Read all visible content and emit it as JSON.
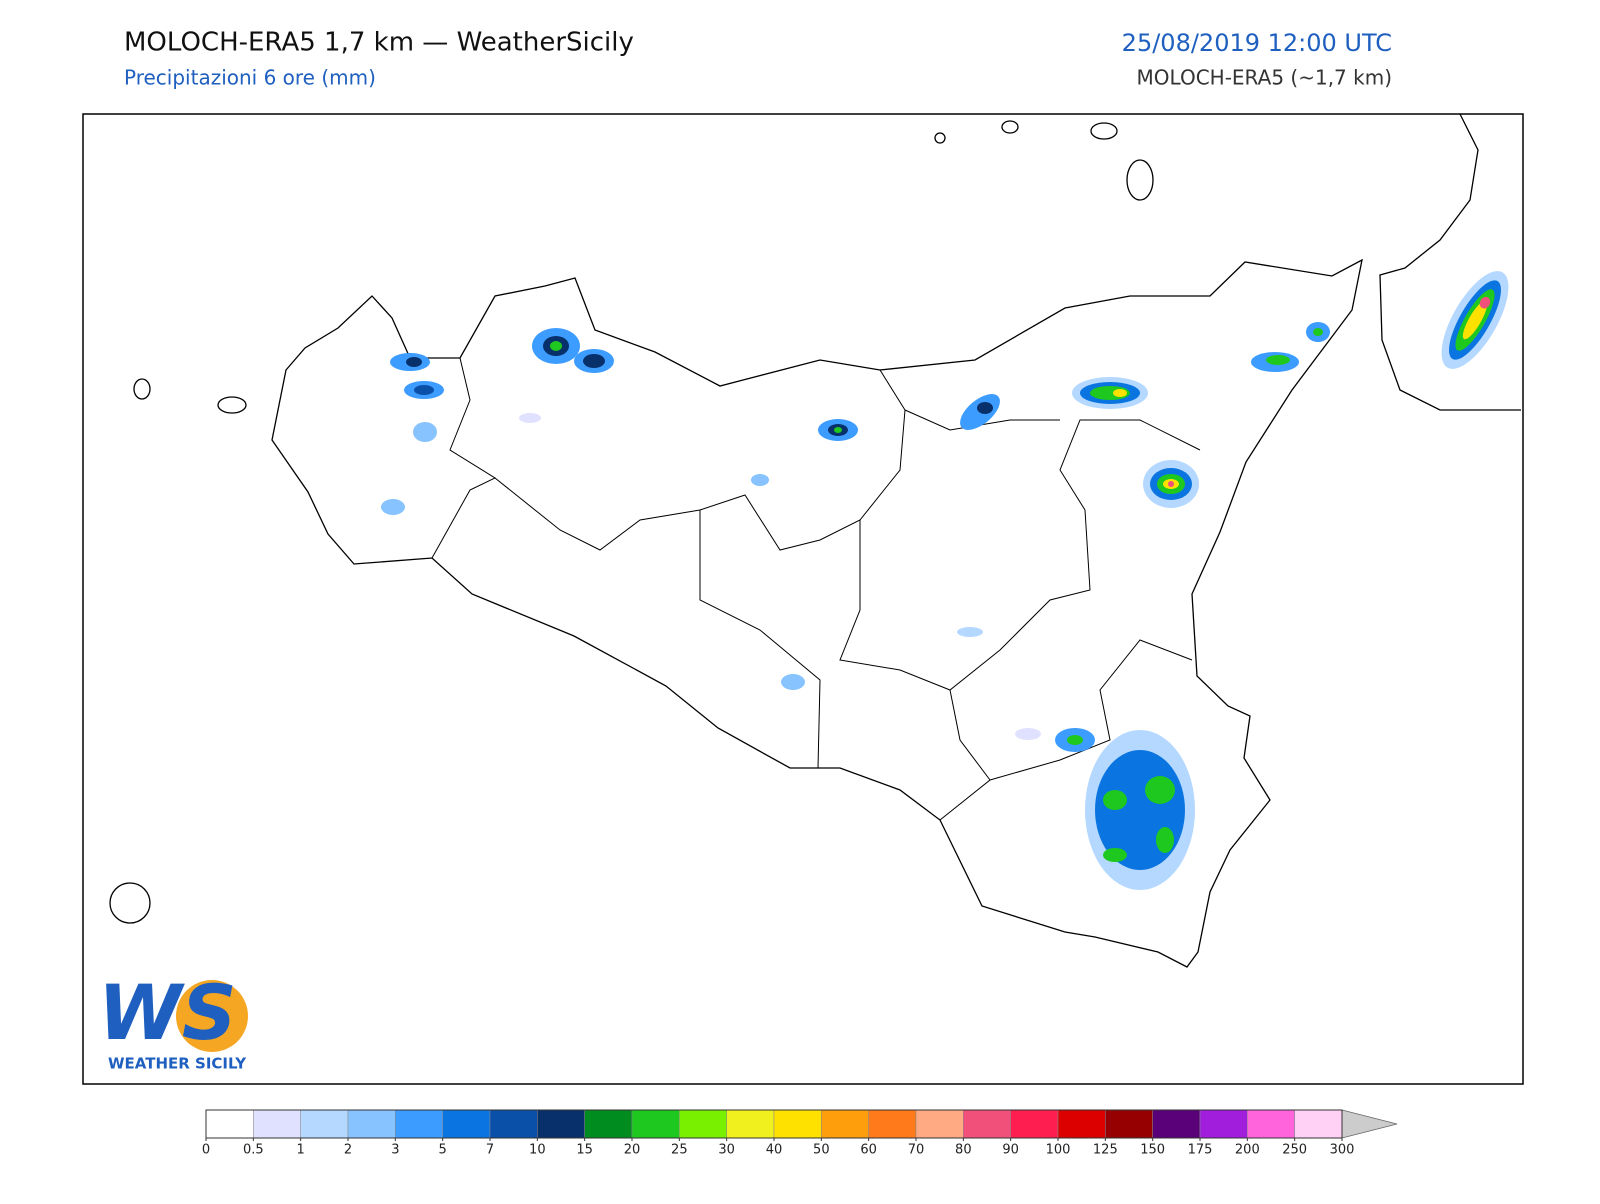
{
  "header": {
    "title": "MOLOCH-ERA5 1,7 km — WeatherSicily",
    "subtitle": "Precipitazioni 6 ore (mm)",
    "datetime": "25/08/2019 12:00 UTC",
    "model": "MOLOCH-ERA5 (~1,7 km)"
  },
  "logo": {
    "mark": "WS",
    "name": "WEATHER SICILY"
  },
  "colorbar": {
    "ticks": [
      0,
      0.5,
      1,
      2,
      3,
      5,
      7,
      10,
      15,
      20,
      25,
      30,
      40,
      50,
      60,
      70,
      80,
      90,
      100,
      125,
      150,
      175,
      200,
      250,
      300
    ],
    "colors": [
      "#ffffff",
      "#e0e0ff",
      "#b4d8ff",
      "#87c3ff",
      "#3c9cff",
      "#0a75e0",
      "#0a50a8",
      "#08306b",
      "#008c1e",
      "#1ec81e",
      "#78f000",
      "#f0f01e",
      "#ffe100",
      "#ff9e0d",
      "#ff7a1a",
      "#ffaa82",
      "#f0507a",
      "#ff1e50",
      "#dc0000",
      "#960000",
      "#5a0078",
      "#a01edc",
      "#ff64dc",
      "#ffd2f5"
    ],
    "extend_color": "#cccccc"
  }
}
